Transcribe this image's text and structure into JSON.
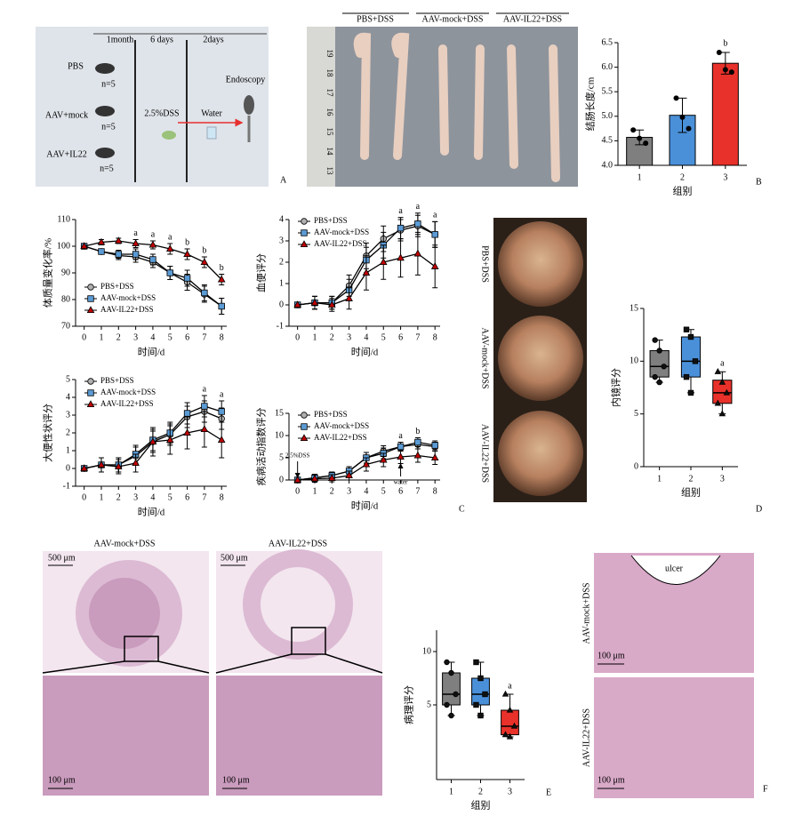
{
  "schematic": {
    "timeline": [
      "1month",
      "6 days",
      "2days"
    ],
    "groups": [
      {
        "label": "PBS",
        "n": "n=5"
      },
      {
        "label": "AAV+mock",
        "n": "n=5"
      },
      {
        "label": "AAV+IL22",
        "n": "n=5"
      }
    ],
    "dss": "2.5%DSS",
    "water": "Water",
    "endoscopy": "Endoscopy"
  },
  "colon_photo": {
    "groups": [
      "PBS+DSS",
      "AAV-mock+DSS",
      "AAV-IL22+DSS"
    ],
    "ruler": [
      "19",
      "18",
      "17",
      "16",
      "15",
      "14",
      "13"
    ]
  },
  "endoscopy_photos": [
    "PBS+DSS",
    "AAV-mock+DSS",
    "AAV-IL22+DSS"
  ],
  "histology": {
    "titles": [
      "AAV-mock+DSS",
      "AAV-IL22+DSS"
    ],
    "scale_low": [
      "500 μm",
      "500 μm"
    ],
    "scale_high": [
      "100 μm",
      "100 μm"
    ]
  },
  "ulcer_photos": {
    "labels": [
      "AAV-mock+DSS",
      "AAV-IL22+DSS"
    ],
    "ulcer": "ulcer",
    "scale": [
      "100 μm",
      "100 μm"
    ]
  },
  "panel_labels": [
    "A",
    "B",
    "C",
    "D",
    "E",
    "F"
  ],
  "chart_data": [
    {
      "type": "bar",
      "categories": [
        "1",
        "2",
        "3"
      ],
      "values": [
        4.57,
        5.02,
        6.08
      ],
      "errors": [
        0.15,
        0.35,
        0.22
      ],
      "points": [
        [
          4.72,
          4.55,
          4.45
        ],
        [
          5.37,
          4.98,
          4.75
        ],
        [
          6.3,
          5.95,
          5.9
        ]
      ],
      "colors": [
        "#7f7f7f",
        "#4a90d9",
        "#e8312a"
      ],
      "ylim": [
        4,
        6.5
      ],
      "yticks": [
        {
          "value": 4,
          "label": "4.0"
        },
        {
          "value": 4.5,
          "label": "4.5"
        },
        {
          "value": 5,
          "label": "5.0"
        },
        {
          "value": 5.5,
          "label": "5.5"
        },
        {
          "value": 6,
          "label": "6.0"
        },
        {
          "value": 6.5,
          "label": "6.5"
        }
      ],
      "xlabel": "组别",
      "ylabel": "结肠长度/cm",
      "annotations": [
        null,
        null,
        "b"
      ]
    },
    {
      "type": "line",
      "x": [
        0,
        1,
        2,
        3,
        4,
        5,
        6,
        7,
        8
      ],
      "xlim": [
        -0.5,
        8.3
      ],
      "xticks": [
        0,
        1,
        2,
        3,
        4,
        5,
        6,
        7,
        8
      ],
      "ylim": [
        70,
        110
      ],
      "yticks": [
        70,
        80,
        90,
        100,
        110
      ],
      "xlabel": "时间/d",
      "ylabel": "体质量变化率/%",
      "legend": "lower left",
      "series": [
        {
          "name": "PBS+DSS",
          "color": "#b0b0b0",
          "marker": "circle",
          "values": [
            100,
            98,
            96.5,
            96,
            94,
            90,
            86.5,
            82,
            77.5
          ],
          "errors": [
            0,
            1,
            1.5,
            2,
            2,
            2.5,
            3,
            3,
            3
          ]
        },
        {
          "name": "AAV-mock+DSS",
          "color": "#5b9bd5",
          "marker": "square",
          "values": [
            100,
            98,
            97,
            97,
            95,
            90,
            88,
            82.5,
            77.5
          ],
          "errors": [
            0,
            1,
            1.5,
            2,
            2,
            2.5,
            3,
            3,
            3
          ]
        },
        {
          "name": "AAV-IL22+DSS",
          "color": "#c00000",
          "marker": "triangle",
          "values": [
            100,
            101.5,
            102,
            101,
            100.5,
            99,
            97,
            94,
            87.5
          ],
          "errors": [
            0,
            1,
            1,
            1.5,
            1.5,
            2,
            2,
            2,
            2
          ]
        }
      ],
      "annotations": [
        null,
        null,
        null,
        "a",
        "a",
        "a",
        "b",
        "b",
        "b"
      ]
    },
    {
      "type": "line",
      "x": [
        0,
        1,
        2,
        3,
        4,
        5,
        6,
        7,
        8
      ],
      "xlim": [
        -0.5,
        8.3
      ],
      "xticks": [
        0,
        1,
        2,
        3,
        4,
        5,
        6,
        7,
        8
      ],
      "ylim": [
        -1,
        4
      ],
      "yticks": [
        -1,
        0,
        1,
        2,
        3,
        4
      ],
      "xlabel": "时间/d",
      "ylabel": "血便评分",
      "legend": "upper left",
      "series": [
        {
          "name": "PBS+DSS",
          "color": "#b0b0b0",
          "marker": "circle",
          "values": [
            0,
            0.1,
            0.1,
            0.9,
            2.3,
            3.1,
            3.5,
            3.7,
            3.3
          ],
          "errors": [
            0,
            0.3,
            0.3,
            0.5,
            0.6,
            0.6,
            0.5,
            0.5,
            0.6
          ]
        },
        {
          "name": "AAV-mock+DSS",
          "color": "#5b9bd5",
          "marker": "square",
          "values": [
            0,
            0.1,
            0.1,
            0.7,
            2.1,
            2.8,
            3.6,
            3.8,
            3.3
          ],
          "errors": [
            0,
            0.3,
            0.3,
            0.5,
            0.6,
            0.6,
            0.5,
            0.5,
            0.6
          ]
        },
        {
          "name": "AAV-IL22+DSS",
          "color": "#c00000",
          "marker": "triangle",
          "values": [
            0,
            0.1,
            0,
            0.3,
            1.5,
            2,
            2.2,
            2.4,
            1.8
          ],
          "errors": [
            0,
            0.3,
            0.3,
            0.5,
            0.8,
            0.8,
            0.9,
            1,
            1
          ]
        }
      ],
      "annotations": [
        null,
        null,
        null,
        null,
        null,
        null,
        "a",
        "a",
        "a"
      ]
    },
    {
      "type": "line",
      "x": [
        0,
        1,
        2,
        3,
        4,
        5,
        6,
        7,
        8
      ],
      "xlim": [
        -0.5,
        8.3
      ],
      "xticks": [
        0,
        1,
        2,
        3,
        4,
        5,
        6,
        7,
        8
      ],
      "ylim": [
        -1,
        5
      ],
      "yticks": [
        -1,
        0,
        1,
        2,
        3,
        4,
        5
      ],
      "xlabel": "时间/d",
      "ylabel": "大便性状评分",
      "legend": "upper left",
      "series": [
        {
          "name": "PBS+DSS",
          "color": "#b0b0b0",
          "marker": "circle",
          "values": [
            0,
            0.2,
            0.2,
            0.7,
            1.5,
            1.9,
            2.9,
            3.2,
            2.8
          ],
          "errors": [
            0,
            0.4,
            0.4,
            0.5,
            0.6,
            0.6,
            0.6,
            0.6,
            0.6
          ]
        },
        {
          "name": "AAV-mock+DSS",
          "color": "#5b9bd5",
          "marker": "square",
          "values": [
            0,
            0.2,
            0.2,
            0.8,
            1.6,
            2,
            3.1,
            3.5,
            3.2
          ],
          "errors": [
            0,
            0.4,
            0.4,
            0.5,
            0.6,
            0.6,
            0.6,
            0.6,
            0.6
          ]
        },
        {
          "name": "AAV-IL22+DSS",
          "color": "#c00000",
          "marker": "triangle",
          "values": [
            0,
            0.2,
            0.1,
            0.3,
            1.5,
            1.6,
            2,
            2.2,
            1.6
          ],
          "errors": [
            0,
            0.4,
            0.4,
            0.5,
            0.8,
            0.8,
            0.9,
            1,
            1
          ]
        }
      ],
      "annotations": [
        null,
        null,
        null,
        null,
        null,
        null,
        null,
        "a",
        "a"
      ]
    },
    {
      "type": "line",
      "x": [
        0,
        1,
        2,
        3,
        4,
        5,
        6,
        7,
        8
      ],
      "xlim": [
        -0.5,
        8.3
      ],
      "xticks": [
        0,
        1,
        2,
        3,
        4,
        5,
        6,
        7,
        8
      ],
      "ylim": [
        0,
        15
      ],
      "yticks": [
        0,
        5,
        10,
        15
      ],
      "xlabel": "时间/d",
      "ylabel": "疾病活动指数评分",
      "legend": "upper left",
      "reference_line": 0,
      "arrows": [
        {
          "text": "2.5%DSS",
          "x": 0,
          "direction": "down"
        },
        {
          "text": "water",
          "x": 6,
          "direction": "up"
        }
      ],
      "series": [
        {
          "name": "PBS+DSS",
          "color": "#b0b0b0",
          "marker": "circle",
          "values": [
            0,
            0.5,
            1,
            2,
            5,
            6.5,
            7.5,
            8,
            7.5
          ],
          "errors": [
            0,
            0.8,
            0.8,
            1,
            1.2,
            1.2,
            1,
            1,
            1
          ]
        },
        {
          "name": "AAV-mock+DSS",
          "color": "#5b9bd5",
          "marker": "square",
          "values": [
            0,
            0.5,
            1,
            2,
            5,
            6,
            7.5,
            8.5,
            7.8
          ],
          "errors": [
            0,
            0.8,
            0.8,
            1,
            1.2,
            1.2,
            1,
            1,
            1
          ]
        },
        {
          "name": "AAV-IL22+DSS",
          "color": "#c00000",
          "marker": "triangle",
          "values": [
            0,
            0.3,
            0.4,
            1,
            3.5,
            4.5,
            5.2,
            5.5,
            5
          ],
          "errors": [
            0,
            0.8,
            0.8,
            1,
            1.5,
            1.5,
            1.5,
            1.5,
            1.5
          ]
        }
      ],
      "annotations": [
        null,
        null,
        null,
        null,
        null,
        null,
        "a",
        "b",
        null
      ]
    },
    {
      "type": "box",
      "categories": [
        "1",
        "2",
        "3"
      ],
      "colors": [
        "#7f7f7f",
        "#4a90d9",
        "#e8312a"
      ],
      "point_markers": [
        "circle",
        "square",
        "triangle"
      ],
      "boxes": [
        {
          "min": 8,
          "q1": 8.5,
          "median": 9.5,
          "q3": 11,
          "max": 12,
          "points": [
            12,
            11,
            9.5,
            8.5,
            8
          ]
        },
        {
          "min": 7,
          "q1": 8.5,
          "median": 10,
          "q3": 12.3,
          "max": 13,
          "points": [
            13,
            12.3,
            10,
            8.5,
            7
          ]
        },
        {
          "min": 5,
          "q1": 6,
          "median": 7,
          "q3": 8.2,
          "max": 9,
          "points": [
            9,
            8,
            7,
            6,
            5
          ]
        }
      ],
      "ylim": [
        0,
        15
      ],
      "yticks": [
        0,
        5,
        10,
        15
      ],
      "xlabel": "组别",
      "ylabel": "内镜评分",
      "annotations": [
        null,
        null,
        "a"
      ]
    },
    {
      "type": "box",
      "categories": [
        "1",
        "2",
        "3"
      ],
      "colors": [
        "#7f7f7f",
        "#4a90d9",
        "#e8312a"
      ],
      "point_markers": [
        "circle",
        "square",
        "triangle"
      ],
      "boxes": [
        {
          "min": 4,
          "q1": 5,
          "median": 6,
          "q3": 8,
          "max": 9,
          "points": [
            9,
            8,
            6,
            5,
            4
          ]
        },
        {
          "min": 4,
          "q1": 5,
          "median": 6,
          "q3": 7.5,
          "max": 9,
          "points": [
            9,
            7.5,
            6,
            5,
            4
          ]
        },
        {
          "min": 2,
          "q1": 2.2,
          "median": 3,
          "q3": 4.5,
          "max": 6,
          "points": [
            6,
            4.5,
            3,
            2.2,
            2
          ]
        }
      ],
      "ylim": [
        -2,
        12
      ],
      "yticks": [
        5,
        10
      ],
      "xlabel": "组别",
      "ylabel": "病理评分",
      "annotations": [
        null,
        null,
        "a"
      ]
    }
  ]
}
